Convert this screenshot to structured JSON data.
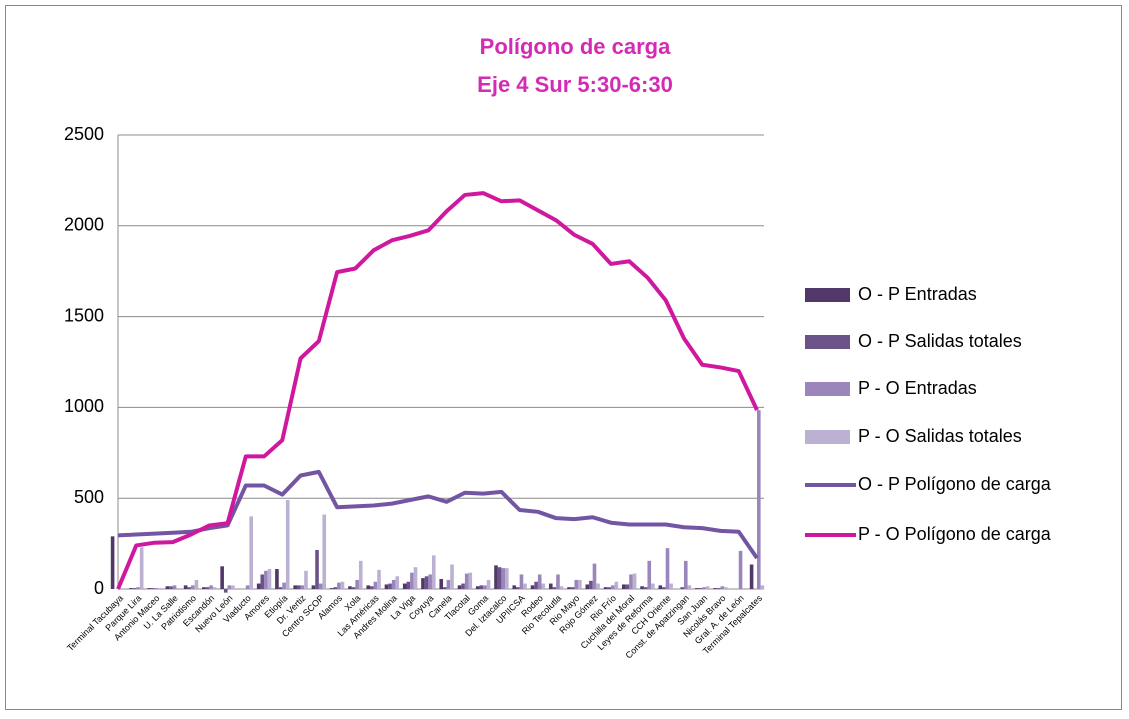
{
  "chart_data": {
    "type": "combo",
    "title": "Polígono de carga",
    "subtitle": "Eje 4 Sur 5:30-6:30",
    "categories": [
      "Terminal Tacubaya",
      "Parque Lira",
      "Antonio Maceo",
      "U. La Salle",
      "Patriotismo",
      "Escandón",
      "Nuevo León",
      "Viaducto",
      "Amores",
      "Etiopía",
      "Dr. Vertiz",
      "Centro SCOP",
      "Alamos",
      "Xola",
      "Las Américas",
      "Andres Molina",
      "La Viga",
      "Coyuya",
      "Canela",
      "Tlacotal",
      "Goma",
      "Del. Iztacalco",
      "UPIICSA",
      "Rodeo",
      "Rio Tecolutla",
      "Rio Mayo",
      "Rojo Gómez",
      "Rio Frío",
      "Cuchilla del Moral",
      "Leyes de Reforma",
      "CCH Oriente",
      "Const. de Apatzingan",
      "San Juan",
      "Nicolás Bravo",
      "Gral. A. de León",
      "Terminal Tepalcates"
    ],
    "series": [
      {
        "name": "O - P Entradas",
        "type": "bar",
        "color": "#513869",
        "values": [
          290,
          5,
          5,
          15,
          20,
          10,
          125,
          0,
          30,
          110,
          20,
          20,
          5,
          15,
          20,
          25,
          30,
          60,
          55,
          20,
          15,
          130,
          20,
          20,
          30,
          10,
          25,
          10,
          25,
          15,
          20,
          0,
          5,
          5,
          0,
          135
        ]
      },
      {
        "name": "O - P Salidas totales",
        "type": "bar",
        "color": "#6b5289",
        "values": [
          0,
          5,
          5,
          15,
          10,
          10,
          -20,
          0,
          80,
          10,
          20,
          215,
          10,
          10,
          15,
          30,
          40,
          70,
          10,
          30,
          20,
          120,
          10,
          40,
          10,
          10,
          45,
          10,
          25,
          10,
          10,
          10,
          5,
          5,
          0,
          0
        ]
      },
      {
        "name": "P - O Entradas",
        "type": "bar",
        "color": "#9a86bb",
        "values": [
          0,
          10,
          5,
          20,
          20,
          20,
          20,
          20,
          100,
          35,
          20,
          30,
          35,
          50,
          40,
          50,
          90,
          80,
          50,
          85,
          20,
          115,
          80,
          80,
          80,
          50,
          140,
          20,
          80,
          155,
          225,
          155,
          10,
          15,
          210,
          985
        ]
      },
      {
        "name": "P - O Salidas totales",
        "type": "bar",
        "color": "#bcb1d3",
        "values": [
          0,
          230,
          5,
          5,
          50,
          10,
          20,
          400,
          110,
          490,
          100,
          410,
          40,
          155,
          105,
          70,
          120,
          185,
          135,
          90,
          50,
          115,
          30,
          30,
          15,
          50,
          30,
          40,
          85,
          30,
          30,
          20,
          15,
          10,
          5,
          20
        ]
      },
      {
        "name": "O - P Polígono de carga",
        "type": "line",
        "color": "#7356a3",
        "values": [
          295,
          300,
          305,
          310,
          315,
          335,
          350,
          570,
          570,
          520,
          625,
          645,
          450,
          455,
          460,
          470,
          490,
          510,
          480,
          530,
          525,
          535,
          435,
          425,
          390,
          385,
          395,
          365,
          355,
          355,
          355,
          340,
          335,
          320,
          315,
          170
        ]
      },
      {
        "name": "P - O Polígono de carga",
        "type": "line",
        "color": "#d0189f",
        "values": [
          0,
          240,
          255,
          258,
          300,
          350,
          362,
          730,
          730,
          820,
          1270,
          1365,
          1745,
          1765,
          1865,
          1920,
          1945,
          1975,
          2080,
          2170,
          2180,
          2135,
          2140,
          2085,
          2030,
          1950,
          1900,
          1790,
          1805,
          1715,
          1590,
          1380,
          1235,
          1220,
          1200,
          985
        ]
      }
    ],
    "ylim": [
      0,
      2500
    ],
    "yticks": [
      0,
      500,
      1000,
      1500,
      2000,
      2500
    ],
    "grid": true,
    "legend": "right"
  }
}
